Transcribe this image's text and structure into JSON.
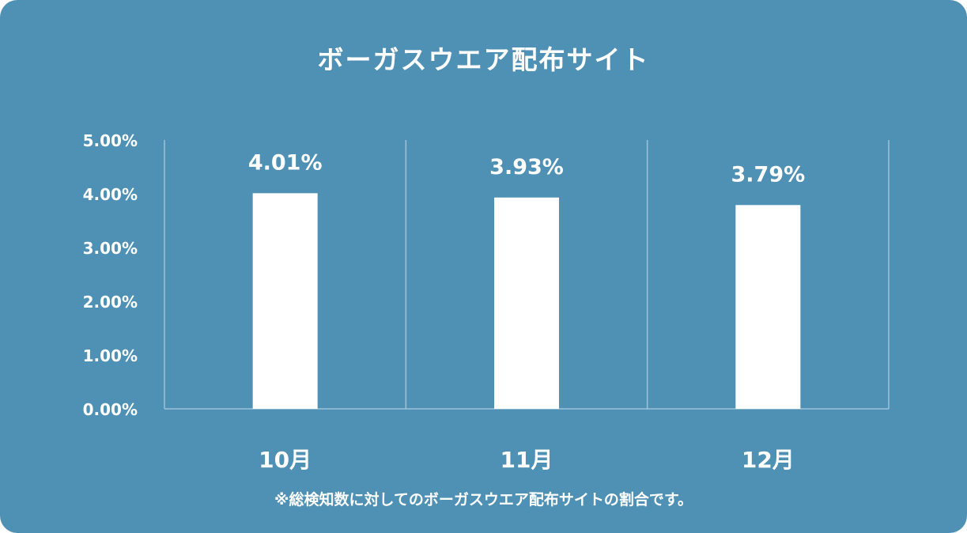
{
  "chart_data": {
    "type": "bar",
    "title": "ボーガスウエア配布サイト",
    "categories": [
      "10月",
      "11月",
      "12月"
    ],
    "values": [
      4.01,
      3.93,
      3.79
    ],
    "value_labels": [
      "4.01%",
      "3.93%",
      "3.79%"
    ],
    "y_ticks": [
      "0.00%",
      "1.00%",
      "2.00%",
      "3.00%",
      "4.00%",
      "5.00%"
    ],
    "y_tick_values": [
      0,
      1,
      2,
      3,
      4,
      5
    ],
    "ylim": [
      0,
      5
    ],
    "grid": false,
    "note": "※総検知数に対してのボーガスウエア配布サイトの割合です。"
  },
  "colors": {
    "background": "#4f91b5",
    "bar": "#ffffff",
    "text": "#ffffff",
    "axis": "#9cc3d9"
  }
}
